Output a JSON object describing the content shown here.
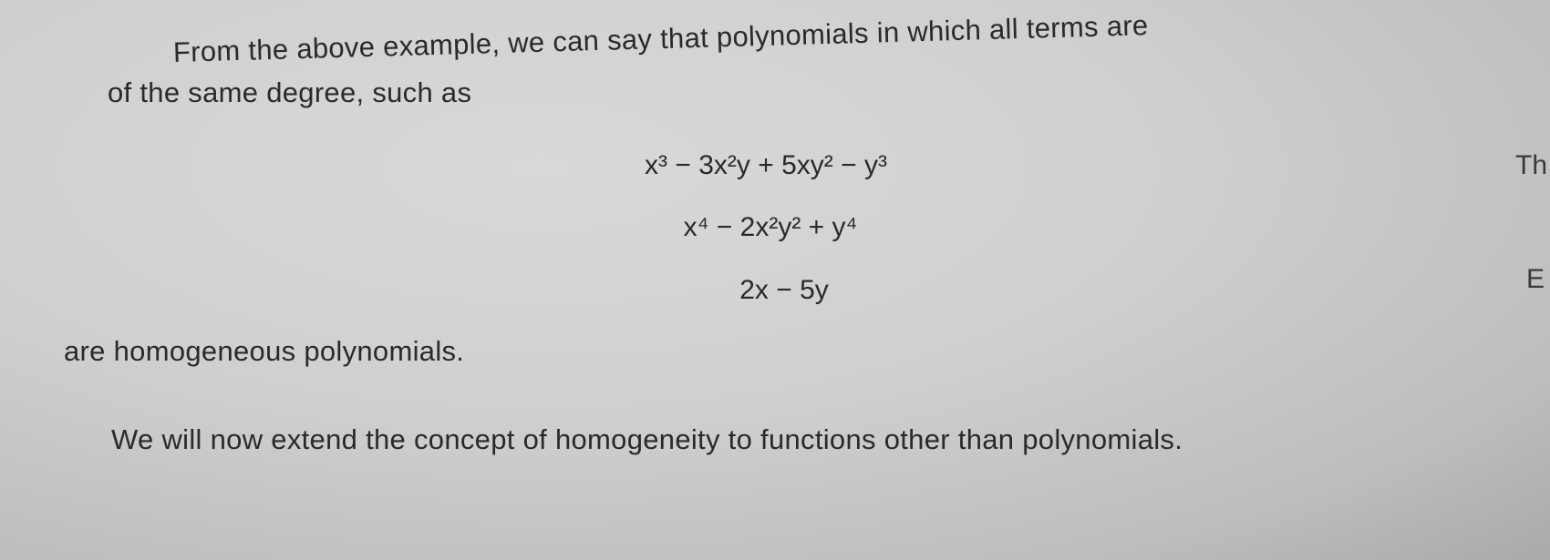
{
  "lines": [
    "From the above example, we can say that polynomials in which all terms are",
    "of the same degree, such as",
    "are homogeneous polynomials."
  ],
  "equations": [
    "x³ − 3x²y + 5xy² − y³",
    "x⁴ − 2x²y² + y⁴",
    "2x − 5y"
  ],
  "paragraph": "We will now extend the concept of homogeneity to functions other than polynomials.",
  "margin_fragments": [
    "Th",
    "E"
  ]
}
